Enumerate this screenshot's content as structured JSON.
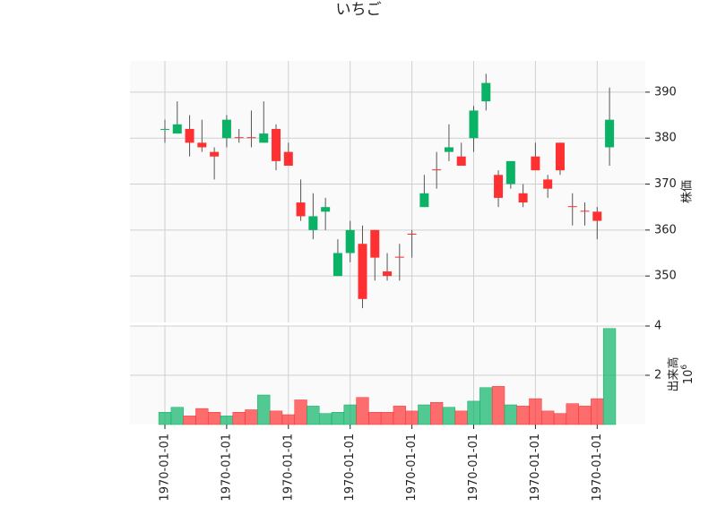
{
  "chart_data": {
    "type": "candlestick",
    "title": "いちご",
    "x": [
      "1970-01-01",
      null,
      null,
      null,
      null,
      "1970-01-01",
      null,
      null,
      null,
      null,
      "1970-01-01",
      null,
      null,
      null,
      null,
      "1970-01-01",
      null,
      null,
      null,
      null,
      "1970-01-01",
      null,
      null,
      null,
      null,
      "1970-01-01",
      null,
      null,
      null,
      null,
      "1970-01-01",
      null,
      null,
      null,
      null,
      "1970-01-01",
      null
    ],
    "open": [
      382,
      381,
      382,
      379,
      377,
      380,
      380.2,
      380.2,
      379,
      382,
      377,
      366,
      360,
      364,
      350,
      355,
      357,
      360,
      351,
      354.2,
      359.2,
      365,
      373.2,
      377,
      376,
      380,
      388,
      372,
      370,
      368,
      376,
      371,
      379,
      365.2,
      364.2,
      364,
      378
    ],
    "high": [
      384,
      388,
      385,
      384,
      378,
      385,
      382,
      386,
      388,
      383,
      379,
      371,
      368,
      367,
      358,
      362,
      361,
      360,
      355,
      357,
      360,
      372,
      377,
      383,
      379,
      387,
      394,
      373,
      375,
      370,
      379,
      372,
      379,
      368,
      366,
      365,
      391
    ],
    "low": [
      379,
      381,
      376,
      377,
      371,
      378,
      379,
      378,
      379,
      373,
      374,
      362,
      358,
      360,
      350,
      353,
      343,
      349,
      349,
      349,
      354,
      365,
      369,
      375,
      374,
      377,
      386,
      365,
      369,
      365,
      373,
      367,
      372,
      361,
      361,
      358,
      374
    ],
    "close": [
      382,
      383,
      379,
      378,
      376,
      384,
      380,
      380,
      381,
      375,
      374,
      363,
      363,
      365,
      355,
      360,
      345,
      354,
      350,
      354,
      359,
      368,
      373,
      378,
      374,
      386,
      392,
      367,
      375,
      366,
      373,
      369,
      373,
      365,
      364,
      362,
      384
    ],
    "volume": [
      0.5,
      0.7,
      0.35,
      0.65,
      0.5,
      0.35,
      0.5,
      0.6,
      1.2,
      0.55,
      0.4,
      1.0,
      0.75,
      0.45,
      0.5,
      0.8,
      1.1,
      0.5,
      0.5,
      0.75,
      0.55,
      0.8,
      0.9,
      0.7,
      0.55,
      0.95,
      1.5,
      1.55,
      0.8,
      0.75,
      1.05,
      0.55,
      0.45,
      0.85,
      0.75,
      1.05,
      3.9
    ],
    "up_color": "#0ab265",
    "down_color": "#fe3032",
    "ylabel": "株価",
    "ylim": [
      339.9,
      396.8
    ],
    "yticks": [
      350,
      360,
      370,
      380,
      390
    ],
    "volume_label": "出来高",
    "volume_offset": {
      "base": "10",
      "exponent": "6"
    },
    "volume_ylim": [
      0,
      4
    ],
    "volume_yticks": [
      2,
      4
    ],
    "grid": true
  }
}
